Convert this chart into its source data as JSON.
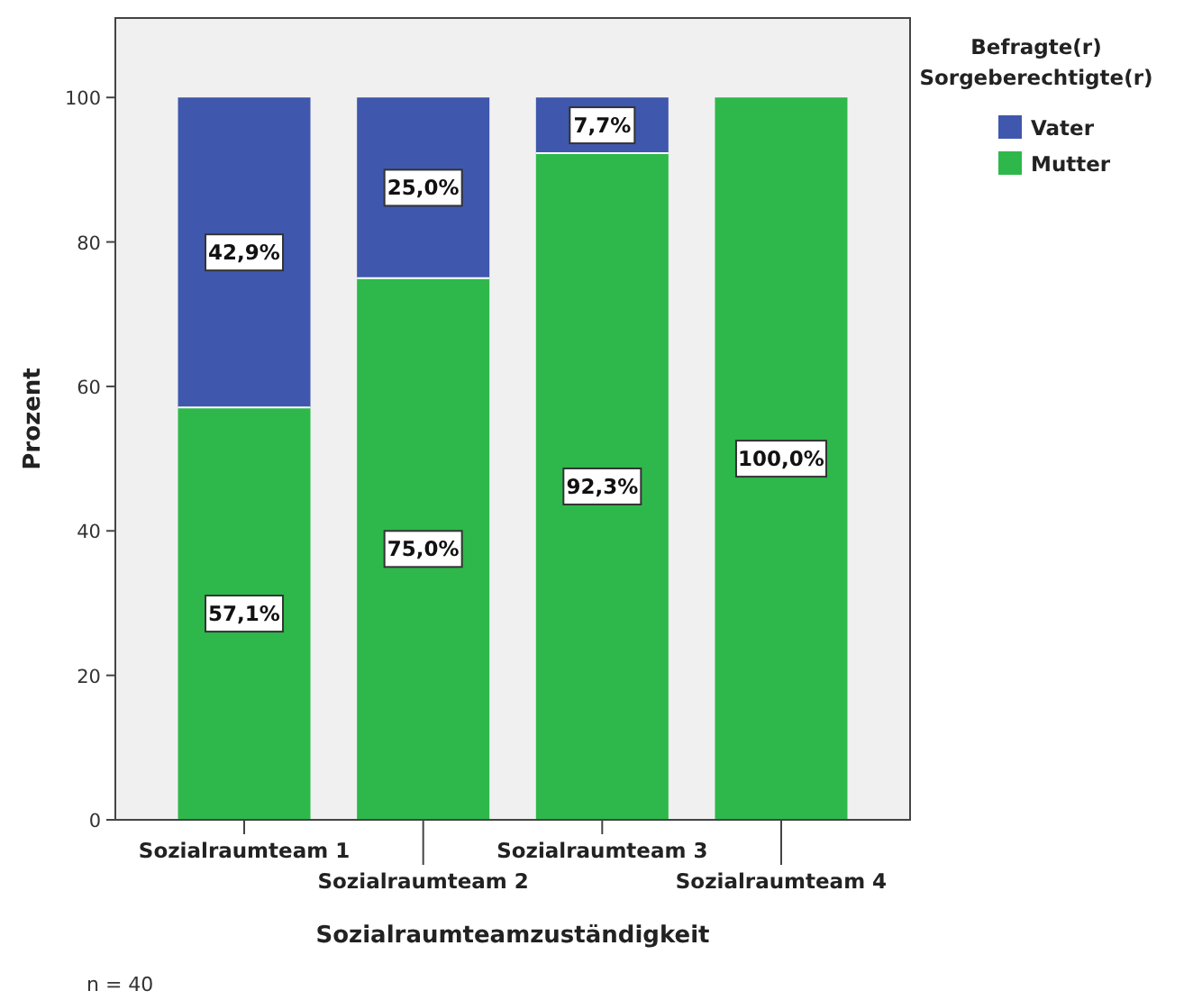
{
  "chart_data": {
    "type": "bar",
    "stacked": true,
    "xlabel": "Sozialraumteamzuständigkeit",
    "ylabel": "Prozent",
    "legend_title": "Befragte(r) Sorgeberechtigte(r)",
    "legend": "top right",
    "grid": false,
    "categories": [
      "Sozialraumteam 1",
      "Sozialraumteam 2",
      "Sozialraumteam 3",
      "Sozialraumteam 4"
    ],
    "series": [
      {
        "name": "Mutter",
        "color": "#2eb84b",
        "values": [
          57.1,
          75.0,
          92.3,
          100.0
        ],
        "value_labels": [
          "57,1%",
          "75,0%",
          "92,3%",
          "100,0%"
        ]
      },
      {
        "name": "Vater",
        "color": "#3f58ad",
        "values": [
          42.9,
          25.0,
          7.7,
          0
        ],
        "value_labels": [
          "42,9%",
          "25,0%",
          "7,7%",
          null
        ]
      }
    ],
    "ylim": [
      0,
      111
    ],
    "yticks": [
      0,
      20,
      40,
      60,
      80,
      100
    ],
    "annotations": [
      "n = 40"
    ]
  }
}
